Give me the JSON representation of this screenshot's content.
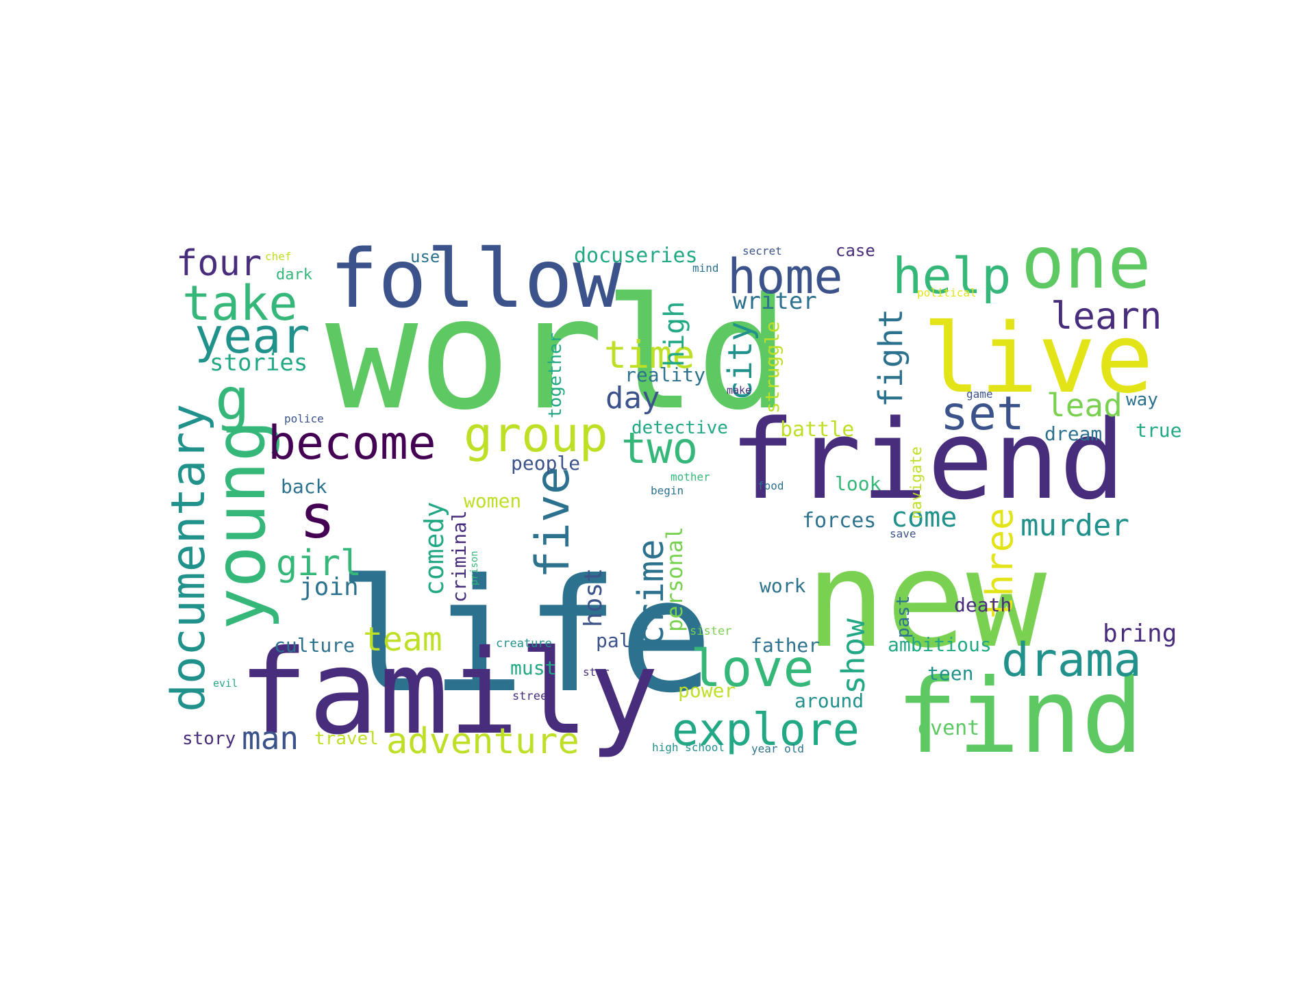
{
  "words": [
    {
      "text": "world",
      "color": "#5ec962"
    },
    {
      "text": "life",
      "color": "#2c728e"
    },
    {
      "text": "new",
      "color": "#7ad151"
    },
    {
      "text": "family",
      "color": "#472d7b"
    },
    {
      "text": "friend",
      "color": "#472d7b"
    },
    {
      "text": "find",
      "color": "#5ec962"
    },
    {
      "text": "live",
      "color": "#e2e418"
    },
    {
      "text": "follow",
      "color": "#3b528b"
    },
    {
      "text": "one",
      "color": "#5ec962"
    },
    {
      "text": "young",
      "color": "#35b779"
    },
    {
      "text": "documentary",
      "color": "#21918c"
    },
    {
      "text": "group",
      "color": "#bddf26"
    },
    {
      "text": "become",
      "color": "#440154"
    },
    {
      "text": "s",
      "color": "#440154"
    },
    {
      "text": "help",
      "color": "#35b779"
    },
    {
      "text": "home",
      "color": "#3b528b"
    },
    {
      "text": "take",
      "color": "#35b779"
    },
    {
      "text": "year",
      "color": "#21918c"
    },
    {
      "text": "g",
      "color": "#35b779"
    },
    {
      "text": "set",
      "color": "#3b528b"
    },
    {
      "text": "two",
      "color": "#35b779"
    },
    {
      "text": "time",
      "color": "#bddf26"
    },
    {
      "text": "four",
      "color": "#472d7b"
    },
    {
      "text": "learn",
      "color": "#472d7b"
    },
    {
      "text": "love",
      "color": "#35b779"
    },
    {
      "text": "drama",
      "color": "#21918c"
    },
    {
      "text": "explore",
      "color": "#22a884"
    },
    {
      "text": "adventure",
      "color": "#bddf26"
    },
    {
      "text": "five",
      "color": "#2c728e"
    },
    {
      "text": "three",
      "color": "#e2e418"
    },
    {
      "text": "comedy",
      "color": "#22a884"
    },
    {
      "text": "crime",
      "color": "#2c728e"
    },
    {
      "text": "girl",
      "color": "#35b779"
    },
    {
      "text": "team",
      "color": "#bddf26"
    },
    {
      "text": "man",
      "color": "#3b528b"
    },
    {
      "text": "show",
      "color": "#22a884"
    },
    {
      "text": "fight",
      "color": "#2c728e"
    },
    {
      "text": "city",
      "color": "#21918c"
    },
    {
      "text": "lead",
      "color": "#7ad151"
    },
    {
      "text": "murder",
      "color": "#21918c"
    },
    {
      "text": "day",
      "color": "#3b528b"
    },
    {
      "text": "come",
      "color": "#21918c"
    },
    {
      "text": "writer",
      "color": "#2c728e"
    },
    {
      "text": "high",
      "color": "#22a884"
    },
    {
      "text": "stories",
      "color": "#22a884"
    },
    {
      "text": "join",
      "color": "#2c728e"
    },
    {
      "text": "host",
      "color": "#3b528b"
    },
    {
      "text": "personal",
      "color": "#7ad151"
    },
    {
      "text": "struggle",
      "color": "#bddf26"
    },
    {
      "text": "together",
      "color": "#22a884"
    },
    {
      "text": "docuseries",
      "color": "#22a884"
    },
    {
      "text": "bring",
      "color": "#472d7b"
    },
    {
      "text": "battle",
      "color": "#bddf26"
    },
    {
      "text": "dream",
      "color": "#2c728e"
    },
    {
      "text": "forces",
      "color": "#2c728e"
    },
    {
      "text": "detective",
      "color": "#22a884"
    },
    {
      "text": "reality",
      "color": "#2c728e"
    },
    {
      "text": "people",
      "color": "#3b528b"
    },
    {
      "text": "back",
      "color": "#2c728e"
    },
    {
      "text": "women",
      "color": "#bddf26"
    },
    {
      "text": "criminal",
      "color": "#472d7b"
    },
    {
      "text": "look",
      "color": "#35b779"
    },
    {
      "text": "work",
      "color": "#2c728e"
    },
    {
      "text": "death",
      "color": "#472d7b"
    },
    {
      "text": "culture",
      "color": "#2c728e"
    },
    {
      "text": "father",
      "color": "#2c728e"
    },
    {
      "text": "ambitious",
      "color": "#22a884"
    },
    {
      "text": "must",
      "color": "#22a884"
    },
    {
      "text": "pal",
      "color": "#3b528b"
    },
    {
      "text": "past",
      "color": "#2c728e"
    },
    {
      "text": "power",
      "color": "#bddf26"
    },
    {
      "text": "around",
      "color": "#21918c"
    },
    {
      "text": "teen",
      "color": "#21918c"
    },
    {
      "text": "event",
      "color": "#5ec962"
    },
    {
      "text": "story",
      "color": "#472d7b"
    },
    {
      "text": "travel",
      "color": "#bddf26"
    },
    {
      "text": "true",
      "color": "#22a884"
    },
    {
      "text": "way",
      "color": "#2c728e"
    },
    {
      "text": "navigate",
      "color": "#bddf26"
    },
    {
      "text": "dark",
      "color": "#35b779"
    },
    {
      "text": "case",
      "color": "#472d7b"
    },
    {
      "text": "use",
      "color": "#2c728e"
    },
    {
      "text": "chef",
      "color": "#bddf26"
    },
    {
      "text": "mind",
      "color": "#2c728e"
    },
    {
      "text": "secret",
      "color": "#3b528b"
    },
    {
      "text": "political",
      "color": "#e2e418"
    },
    {
      "text": "police",
      "color": "#3b528b"
    },
    {
      "text": "make",
      "color": "#472d7b"
    },
    {
      "text": "game",
      "color": "#3b528b"
    },
    {
      "text": "begin",
      "color": "#2c728e"
    },
    {
      "text": "mother",
      "color": "#35b779"
    },
    {
      "text": "food",
      "color": "#2c728e"
    },
    {
      "text": "save",
      "color": "#3b528b"
    },
    {
      "text": "prison",
      "color": "#35b779"
    },
    {
      "text": "creature",
      "color": "#21918c"
    },
    {
      "text": "sister",
      "color": "#7ad151"
    },
    {
      "text": "evil",
      "color": "#22a884"
    },
    {
      "text": "star",
      "color": "#472d7b"
    },
    {
      "text": "street",
      "color": "#472d7b"
    },
    {
      "text": "high school",
      "color": "#21918c"
    },
    {
      "text": "year old",
      "color": "#2c728e"
    }
  ]
}
